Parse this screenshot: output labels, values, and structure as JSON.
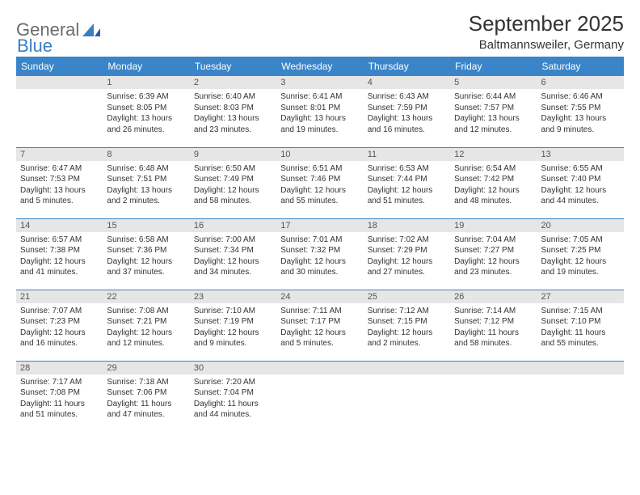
{
  "logo": {
    "part1": "General",
    "part2": "Blue"
  },
  "title": "September 2025",
  "location": "Baltmannsweiler, Germany",
  "colors": {
    "header_bg": "#3a85c9",
    "header_text": "#ffffff",
    "daynum_bg": "#e6e6e6",
    "row_border": "#3a85c9",
    "logo_grey": "#6b6b6b",
    "logo_blue": "#3a7fc4"
  },
  "weekdays": [
    "Sunday",
    "Monday",
    "Tuesday",
    "Wednesday",
    "Thursday",
    "Friday",
    "Saturday"
  ],
  "weeks": [
    [
      {
        "day": "",
        "sunrise": "",
        "sunset": "",
        "daylight": ""
      },
      {
        "day": "1",
        "sunrise": "Sunrise: 6:39 AM",
        "sunset": "Sunset: 8:05 PM",
        "daylight": "Daylight: 13 hours and 26 minutes."
      },
      {
        "day": "2",
        "sunrise": "Sunrise: 6:40 AM",
        "sunset": "Sunset: 8:03 PM",
        "daylight": "Daylight: 13 hours and 23 minutes."
      },
      {
        "day": "3",
        "sunrise": "Sunrise: 6:41 AM",
        "sunset": "Sunset: 8:01 PM",
        "daylight": "Daylight: 13 hours and 19 minutes."
      },
      {
        "day": "4",
        "sunrise": "Sunrise: 6:43 AM",
        "sunset": "Sunset: 7:59 PM",
        "daylight": "Daylight: 13 hours and 16 minutes."
      },
      {
        "day": "5",
        "sunrise": "Sunrise: 6:44 AM",
        "sunset": "Sunset: 7:57 PM",
        "daylight": "Daylight: 13 hours and 12 minutes."
      },
      {
        "day": "6",
        "sunrise": "Sunrise: 6:46 AM",
        "sunset": "Sunset: 7:55 PM",
        "daylight": "Daylight: 13 hours and 9 minutes."
      }
    ],
    [
      {
        "day": "7",
        "sunrise": "Sunrise: 6:47 AM",
        "sunset": "Sunset: 7:53 PM",
        "daylight": "Daylight: 13 hours and 5 minutes."
      },
      {
        "day": "8",
        "sunrise": "Sunrise: 6:48 AM",
        "sunset": "Sunset: 7:51 PM",
        "daylight": "Daylight: 13 hours and 2 minutes."
      },
      {
        "day": "9",
        "sunrise": "Sunrise: 6:50 AM",
        "sunset": "Sunset: 7:49 PM",
        "daylight": "Daylight: 12 hours and 58 minutes."
      },
      {
        "day": "10",
        "sunrise": "Sunrise: 6:51 AM",
        "sunset": "Sunset: 7:46 PM",
        "daylight": "Daylight: 12 hours and 55 minutes."
      },
      {
        "day": "11",
        "sunrise": "Sunrise: 6:53 AM",
        "sunset": "Sunset: 7:44 PM",
        "daylight": "Daylight: 12 hours and 51 minutes."
      },
      {
        "day": "12",
        "sunrise": "Sunrise: 6:54 AM",
        "sunset": "Sunset: 7:42 PM",
        "daylight": "Daylight: 12 hours and 48 minutes."
      },
      {
        "day": "13",
        "sunrise": "Sunrise: 6:55 AM",
        "sunset": "Sunset: 7:40 PM",
        "daylight": "Daylight: 12 hours and 44 minutes."
      }
    ],
    [
      {
        "day": "14",
        "sunrise": "Sunrise: 6:57 AM",
        "sunset": "Sunset: 7:38 PM",
        "daylight": "Daylight: 12 hours and 41 minutes."
      },
      {
        "day": "15",
        "sunrise": "Sunrise: 6:58 AM",
        "sunset": "Sunset: 7:36 PM",
        "daylight": "Daylight: 12 hours and 37 minutes."
      },
      {
        "day": "16",
        "sunrise": "Sunrise: 7:00 AM",
        "sunset": "Sunset: 7:34 PM",
        "daylight": "Daylight: 12 hours and 34 minutes."
      },
      {
        "day": "17",
        "sunrise": "Sunrise: 7:01 AM",
        "sunset": "Sunset: 7:32 PM",
        "daylight": "Daylight: 12 hours and 30 minutes."
      },
      {
        "day": "18",
        "sunrise": "Sunrise: 7:02 AM",
        "sunset": "Sunset: 7:29 PM",
        "daylight": "Daylight: 12 hours and 27 minutes."
      },
      {
        "day": "19",
        "sunrise": "Sunrise: 7:04 AM",
        "sunset": "Sunset: 7:27 PM",
        "daylight": "Daylight: 12 hours and 23 minutes."
      },
      {
        "day": "20",
        "sunrise": "Sunrise: 7:05 AM",
        "sunset": "Sunset: 7:25 PM",
        "daylight": "Daylight: 12 hours and 19 minutes."
      }
    ],
    [
      {
        "day": "21",
        "sunrise": "Sunrise: 7:07 AM",
        "sunset": "Sunset: 7:23 PM",
        "daylight": "Daylight: 12 hours and 16 minutes."
      },
      {
        "day": "22",
        "sunrise": "Sunrise: 7:08 AM",
        "sunset": "Sunset: 7:21 PM",
        "daylight": "Daylight: 12 hours and 12 minutes."
      },
      {
        "day": "23",
        "sunrise": "Sunrise: 7:10 AM",
        "sunset": "Sunset: 7:19 PM",
        "daylight": "Daylight: 12 hours and 9 minutes."
      },
      {
        "day": "24",
        "sunrise": "Sunrise: 7:11 AM",
        "sunset": "Sunset: 7:17 PM",
        "daylight": "Daylight: 12 hours and 5 minutes."
      },
      {
        "day": "25",
        "sunrise": "Sunrise: 7:12 AM",
        "sunset": "Sunset: 7:15 PM",
        "daylight": "Daylight: 12 hours and 2 minutes."
      },
      {
        "day": "26",
        "sunrise": "Sunrise: 7:14 AM",
        "sunset": "Sunset: 7:12 PM",
        "daylight": "Daylight: 11 hours and 58 minutes."
      },
      {
        "day": "27",
        "sunrise": "Sunrise: 7:15 AM",
        "sunset": "Sunset: 7:10 PM",
        "daylight": "Daylight: 11 hours and 55 minutes."
      }
    ],
    [
      {
        "day": "28",
        "sunrise": "Sunrise: 7:17 AM",
        "sunset": "Sunset: 7:08 PM",
        "daylight": "Daylight: 11 hours and 51 minutes."
      },
      {
        "day": "29",
        "sunrise": "Sunrise: 7:18 AM",
        "sunset": "Sunset: 7:06 PM",
        "daylight": "Daylight: 11 hours and 47 minutes."
      },
      {
        "day": "30",
        "sunrise": "Sunrise: 7:20 AM",
        "sunset": "Sunset: 7:04 PM",
        "daylight": "Daylight: 11 hours and 44 minutes."
      },
      {
        "day": "",
        "sunrise": "",
        "sunset": "",
        "daylight": ""
      },
      {
        "day": "",
        "sunrise": "",
        "sunset": "",
        "daylight": ""
      },
      {
        "day": "",
        "sunrise": "",
        "sunset": "",
        "daylight": ""
      },
      {
        "day": "",
        "sunrise": "",
        "sunset": "",
        "daylight": ""
      }
    ]
  ]
}
